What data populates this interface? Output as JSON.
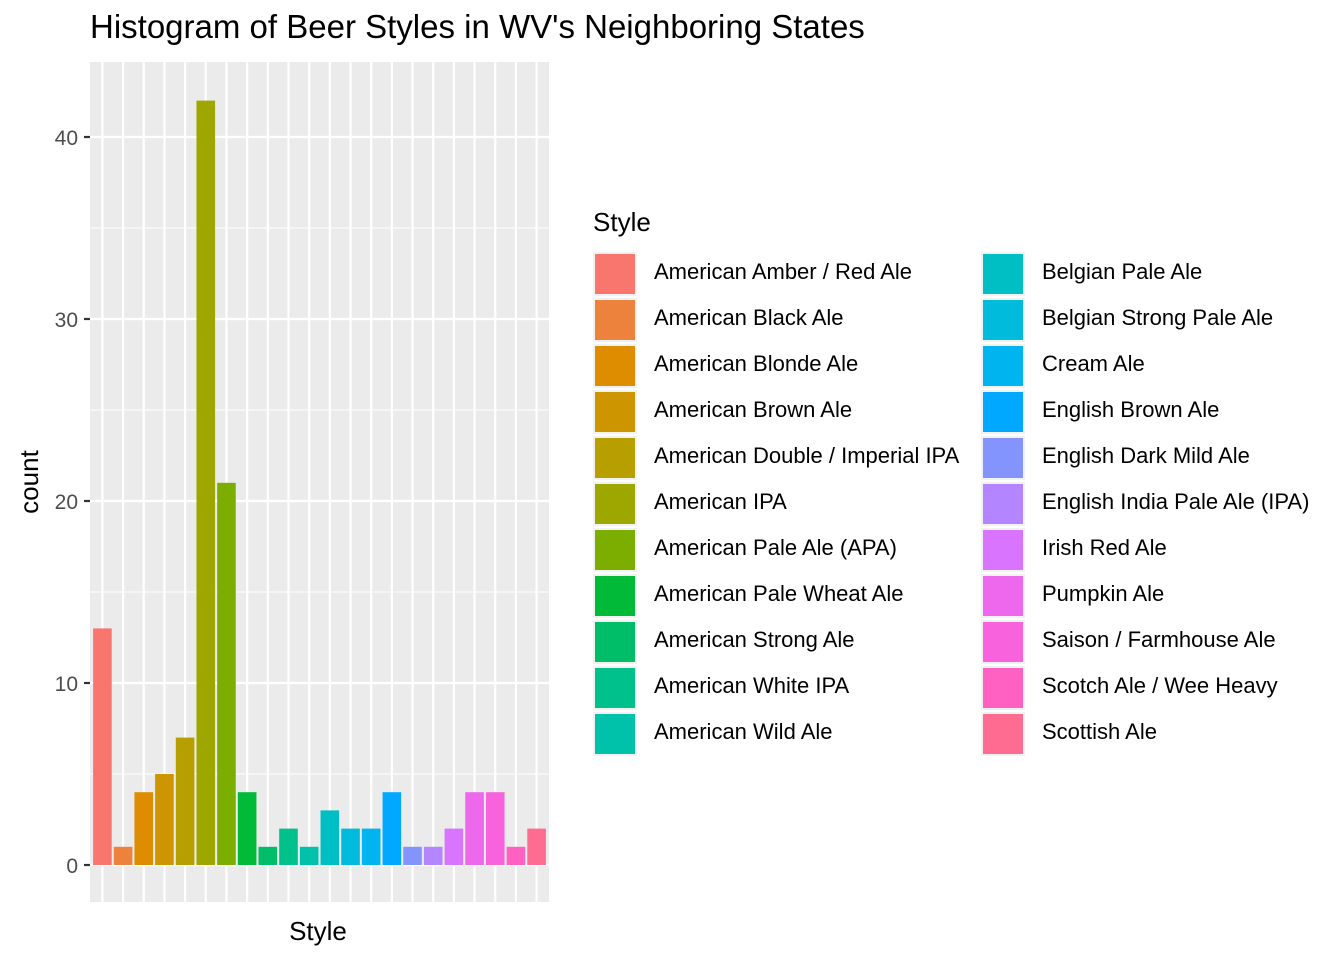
{
  "chart_data": {
    "type": "bar",
    "title": "Histogram of Beer Styles in WV's Neighboring States",
    "xlabel": "Style",
    "ylabel": "count",
    "ylim": [
      0,
      44
    ],
    "yticks": [
      0,
      10,
      20,
      30,
      40
    ],
    "grid": true,
    "legend_title": "Style",
    "legend_position": "right",
    "categories": [
      "American Amber / Red Ale",
      "American Black Ale",
      "American Blonde Ale",
      "American Brown Ale",
      "American Double / Imperial IPA",
      "American IPA",
      "American Pale Ale (APA)",
      "American Pale Wheat Ale",
      "American Strong Ale",
      "American White IPA",
      "American Wild Ale",
      "Belgian Pale Ale",
      "Belgian Strong Pale Ale",
      "Cream Ale",
      "English Brown Ale",
      "English Dark Mild Ale",
      "English India Pale Ale (IPA)",
      "Irish Red Ale",
      "Pumpkin Ale",
      "Saison / Farmhouse Ale",
      "Scotch Ale / Wee Heavy",
      "Scottish Ale"
    ],
    "values": [
      13,
      1,
      4,
      5,
      7,
      42,
      21,
      4,
      1,
      2,
      1,
      3,
      2,
      2,
      4,
      1,
      1,
      2,
      4,
      4,
      1,
      2
    ],
    "colors": [
      "#F8766D",
      "#EC823C",
      "#DE8C00",
      "#CD9600",
      "#B79F00",
      "#9DA700",
      "#7CAE00",
      "#00BA38",
      "#00BE67",
      "#00C08B",
      "#00C1A9",
      "#00BFC4",
      "#00BBDC",
      "#00B4EF",
      "#00A9FF",
      "#8494FF",
      "#B385FF",
      "#D874FD",
      "#ED68ED",
      "#F962DD",
      "#FF61C3",
      "#FF6C91"
    ],
    "panel_background": "#EBEBEB",
    "grid_color": "#FFFFFF"
  }
}
